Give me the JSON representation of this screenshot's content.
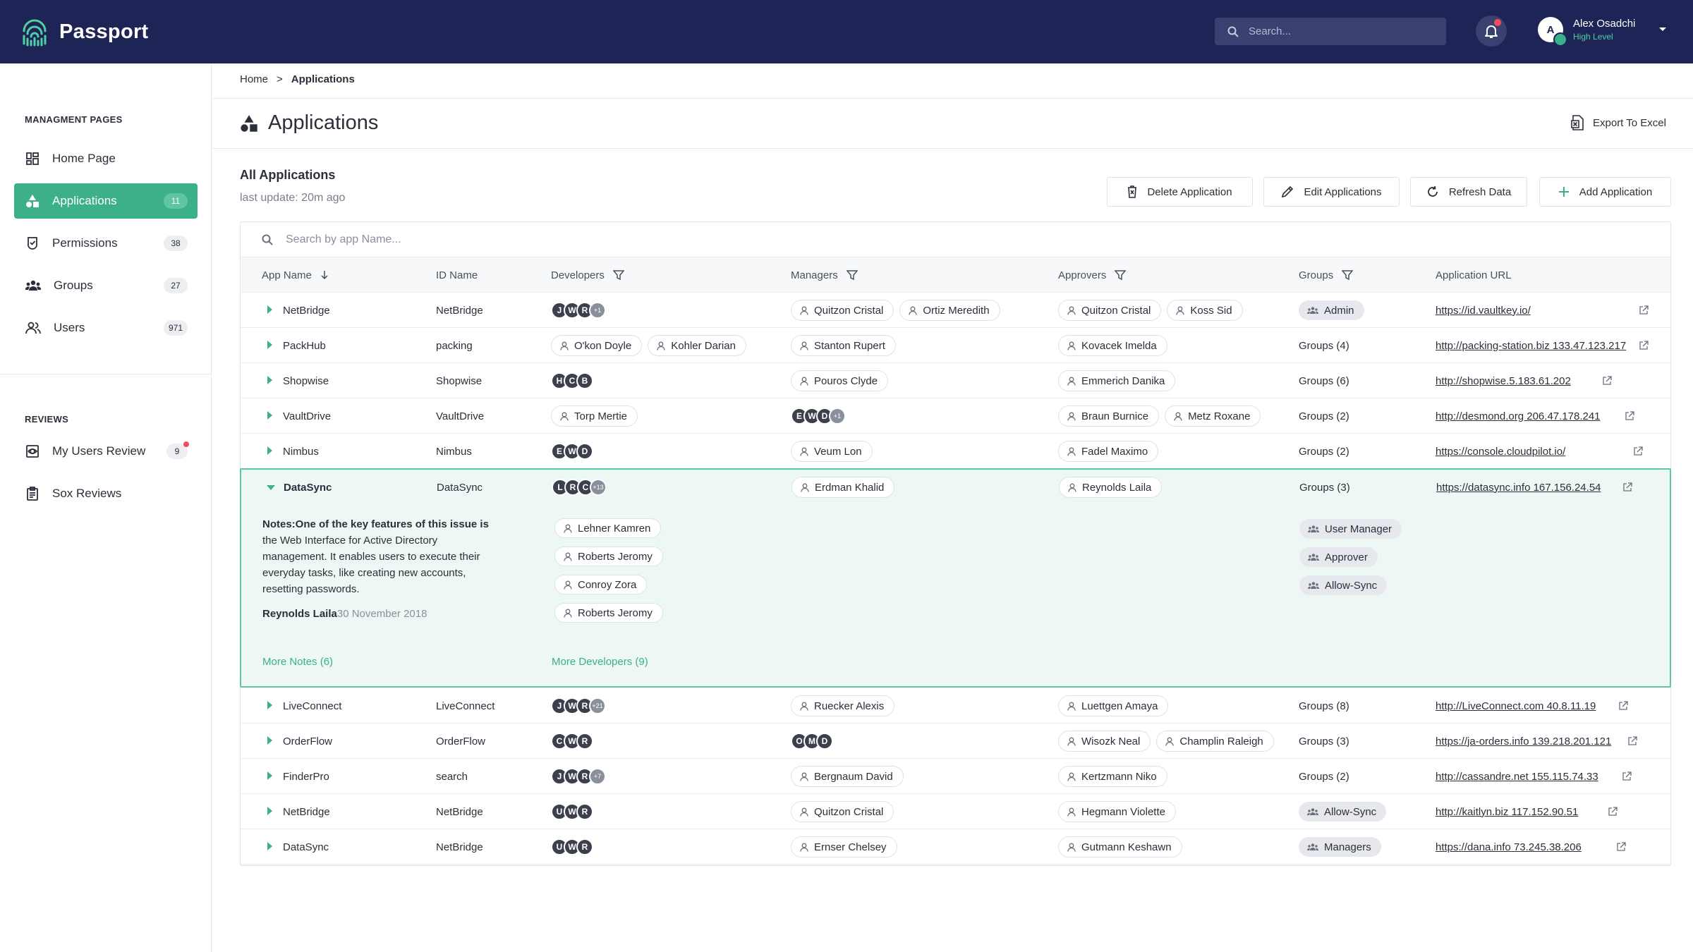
{
  "app": {
    "name": "Passport"
  },
  "search": {
    "placeholder": "Search..."
  },
  "user": {
    "name": "Alex Osadchi",
    "level": "High Level",
    "initial": "A"
  },
  "sidebar": {
    "section1": "MANAGMENT PAGES",
    "items": [
      {
        "label": "Home Page",
        "icon": "dashboard-icon",
        "badge": ""
      },
      {
        "label": "Applications",
        "icon": "shapes-icon",
        "badge": "11"
      },
      {
        "label": "Permissions",
        "icon": "shield-check-icon",
        "badge": "38"
      },
      {
        "label": "Groups",
        "icon": "group-icon",
        "badge": "27"
      },
      {
        "label": "Users",
        "icon": "users-icon",
        "badge": "971"
      }
    ],
    "section2": "REVIEWS",
    "reviews": [
      {
        "label": "My Users Review",
        "icon": "review-icon",
        "badge": "9"
      },
      {
        "label": "Sox Reviews",
        "icon": "clipboard-icon",
        "badge": ""
      }
    ]
  },
  "breadcrumb": {
    "home": "Home",
    "sep": ">",
    "current": "Applications"
  },
  "page": {
    "title": "Applications",
    "export": "Export To Excel",
    "subtitle": "All Applications",
    "last_update": "last update: 20m ago"
  },
  "actions": {
    "delete": "Delete Application",
    "edit": "Edit Applications",
    "refresh": "Refresh Data",
    "add": "Add Application"
  },
  "table": {
    "search_placeholder": "Search by app Name...",
    "headers": {
      "app": "App Name",
      "id": "ID Name",
      "developers": "Developers",
      "managers": "Managers",
      "approvers": "Approvers",
      "groups": "Groups",
      "url": "Application URL"
    },
    "rows": [
      {
        "app": "NetBridge",
        "id": "NetBridge",
        "dev_avatars": [
          "J",
          "W",
          "R"
        ],
        "dev_more": "+1",
        "managers": [
          "Quitzon Cristal",
          "Ortiz Meredith"
        ],
        "approvers": [
          "Quitzon Cristal",
          "Koss Sid"
        ],
        "group_pill": "Admin",
        "url": "https://id.vaultkey.io/"
      },
      {
        "app": "PackHub",
        "id": "packing",
        "devs": [
          "O'kon Doyle",
          "Kohler Darian"
        ],
        "managers": [
          "Stanton Rupert"
        ],
        "approvers": [
          "Kovacek Imelda"
        ],
        "groups": "Groups (4)",
        "url": "http://packing-station.biz 133.47.123.217"
      },
      {
        "app": "Shopwise",
        "id": "Shopwise",
        "dev_avatars": [
          "H",
          "C",
          "B"
        ],
        "managers": [
          "Pouros Clyde"
        ],
        "approvers": [
          "Emmerich Danika"
        ],
        "groups": "Groups (6)",
        "url": "http://shopwise.5.183.61.202"
      },
      {
        "app": "VaultDrive",
        "id": "VaultDrive",
        "devs": [
          "Torp Mertie"
        ],
        "mgr_avatars": [
          "E",
          "W",
          "D"
        ],
        "mgr_more": "+1",
        "approvers": [
          "Braun Burnice",
          "Metz Roxane"
        ],
        "groups": "Groups (2)",
        "url": "http://desmond.org 206.47.178.241"
      },
      {
        "app": "Nimbus",
        "id": "Nimbus",
        "dev_avatars": [
          "E",
          "W",
          "D"
        ],
        "managers": [
          "Veum Lon"
        ],
        "approvers": [
          "Fadel Maximo"
        ],
        "groups": "Groups (2)",
        "url": "https://console.cloudpilot.io/"
      },
      {
        "app": "DataSync",
        "id": "DataSync",
        "dev_avatars": [
          "L",
          "R",
          "C"
        ],
        "dev_more": "+13",
        "managers": [
          "Erdman Khalid"
        ],
        "approvers": [
          "Reynolds Laila"
        ],
        "groups": "Groups (3)",
        "url": "https://datasync.info 167.156.24.54"
      },
      {
        "app": "LiveConnect",
        "id": "LiveConnect",
        "dev_avatars": [
          "J",
          "W",
          "R"
        ],
        "dev_more": "+21",
        "managers": [
          "Ruecker Alexis"
        ],
        "approvers": [
          "Luettgen Amaya"
        ],
        "groups": "Groups (8)",
        "url": "http://LiveConnect.com 40.8.11.19"
      },
      {
        "app": "OrderFlow",
        "id": "OrderFlow",
        "dev_avatars": [
          "C",
          "W",
          "R"
        ],
        "mgr_avatars": [
          "O",
          "M",
          "D"
        ],
        "approvers": [
          "Wisozk Neal",
          "Champlin Raleigh"
        ],
        "groups": "Groups (3)",
        "url": "https://ja-orders.info 139.218.201.121"
      },
      {
        "app": "FinderPro",
        "id": "search",
        "dev_avatars": [
          "J",
          "W",
          "R"
        ],
        "dev_more": "+7",
        "managers": [
          "Bergnaum David"
        ],
        "approvers": [
          "Kertzmann Niko"
        ],
        "groups": "Groups (2)",
        "url": "http://cassandre.net 155.115.74.33"
      },
      {
        "app": "NetBridge",
        "id": "NetBridge",
        "dev_avatars": [
          "U",
          "W",
          "R"
        ],
        "managers": [
          "Quitzon Cristal"
        ],
        "approvers": [
          "Hegmann Violette"
        ],
        "group_pill": "Allow-Sync",
        "url": "http://kaitlyn.biz 117.152.90.51"
      },
      {
        "app": "DataSync",
        "id": "NetBridge",
        "dev_avatars": [
          "U",
          "W",
          "R"
        ],
        "managers": [
          "Ernser Chelsey"
        ],
        "approvers": [
          "Gutmann Keshawn"
        ],
        "group_pill": "Managers",
        "url": "https://dana.info 73.245.38.206"
      }
    ],
    "expanded": {
      "note_label": "Notes:",
      "note_bold": "One of the key features of this issue is",
      "note_text": "the Web Interface for Active Directory management. It enables users to execute their everyday tasks, like creating new accounts, resetting passwords.",
      "author": "Reynolds Laila",
      "date": "30 November 2018",
      "developers": [
        "Lehner Kamren",
        "Roberts Jeromy",
        "Conroy Zora",
        "Roberts Jeromy"
      ],
      "groups": [
        "User Manager",
        "Approver",
        "Allow-Sync"
      ],
      "more_notes": "More Notes (6)",
      "more_devs": "More Developers (9)"
    }
  },
  "colors": {
    "header": "#1e2456",
    "accent": "#3bb08a"
  }
}
